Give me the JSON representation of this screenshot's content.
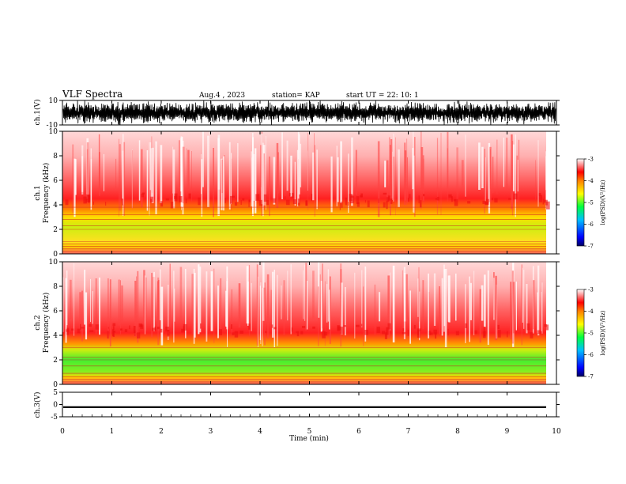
{
  "header": {
    "title": "VLF Spectra",
    "date": "Aug.4 , 2023",
    "station": "station= KAP",
    "start": "start UT = 22: 10: 1"
  },
  "chart_data": [
    {
      "type": "line",
      "panel": "ch1-waveform",
      "ylabel": "ch.1(V)",
      "ylim": [
        -10,
        10
      ],
      "yticks": [
        "10",
        "-10"
      ],
      "xlim": [
        0,
        10
      ],
      "description_values": "dense oscillating waveform saturating between about -10 and 10 V"
    },
    {
      "type": "heatmap",
      "panel": "ch1-spectrogram",
      "ylabel": "ch.1 Frequency (kHz)",
      "ylim": [
        0,
        10
      ],
      "yticks": [
        "0",
        "2",
        "4",
        "6",
        "8",
        "10"
      ],
      "xlim": [
        0,
        9.8
      ],
      "bands": [
        {
          "from_khz": 0.0,
          "to_khz": 1.0,
          "log_psd": -4.0
        },
        {
          "from_khz": 1.0,
          "to_khz": 3.5,
          "log_psd": -4.7
        },
        {
          "from_khz": 3.5,
          "to_khz": 5.0,
          "log_psd": -4.2
        },
        {
          "from_khz": 5.0,
          "to_khz": 10.0,
          "log_psd": -3.4
        }
      ],
      "colorbar": {
        "label": "log(PSD)(V²/Hz)",
        "range": [
          -7,
          -3
        ],
        "ticks": [
          "-3",
          "-4",
          "-5",
          "-6",
          "-7"
        ]
      }
    },
    {
      "type": "heatmap",
      "panel": "ch2-spectrogram",
      "ylabel": "ch.2 Frequency (kHz)",
      "ylim": [
        0,
        10
      ],
      "yticks": [
        "0",
        "2",
        "4",
        "6",
        "8",
        "10"
      ],
      "xlim": [
        0,
        9.8
      ],
      "bands": [
        {
          "from_khz": 0.0,
          "to_khz": 1.0,
          "log_psd": -4.0
        },
        {
          "from_khz": 1.0,
          "to_khz": 3.0,
          "log_psd": -4.9
        },
        {
          "from_khz": 3.0,
          "to_khz": 4.8,
          "log_psd": -4.2
        },
        {
          "from_khz": 4.8,
          "to_khz": 10.0,
          "log_psd": -3.4
        }
      ],
      "colorbar": {
        "label": "log(PSD)(V²/Hz)",
        "range": [
          -7,
          -3
        ],
        "ticks": [
          "-3",
          "-4",
          "-5",
          "-6",
          "-7"
        ]
      }
    },
    {
      "type": "line",
      "panel": "ch3-waveform",
      "ylabel": "ch.3(V)",
      "ylim": [
        -5,
        5
      ],
      "yticks": [
        "5",
        "0",
        "-5"
      ],
      "xlim": [
        0,
        10
      ],
      "description_values": "narrow band around -1 V"
    }
  ],
  "xaxis": {
    "label": "Time (min)",
    "ticks": [
      "0",
      "1",
      "2",
      "3",
      "4",
      "5",
      "6",
      "7",
      "8",
      "9",
      "10"
    ]
  }
}
